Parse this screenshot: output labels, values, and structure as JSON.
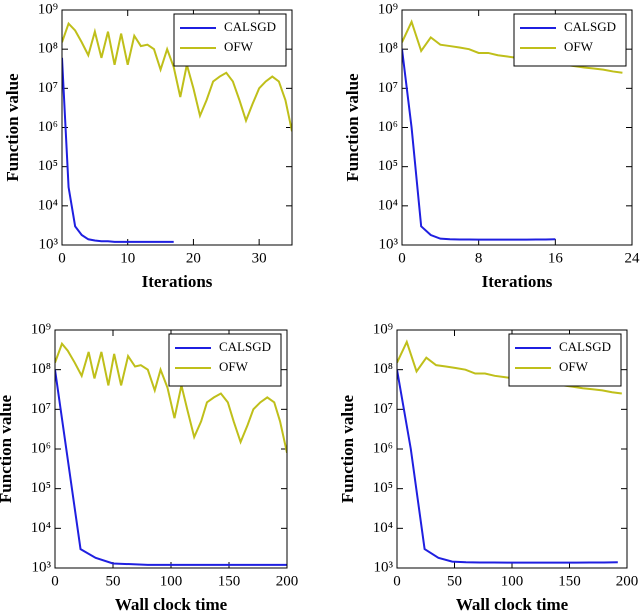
{
  "chart_data": [
    {
      "type": "line",
      "xlabel": "Iterations",
      "ylabel": "Function value",
      "log_y": true,
      "legend": "upper right",
      "xlim": [
        0,
        35
      ],
      "xticks": [
        0,
        10,
        20,
        30
      ],
      "ylim": [
        1000,
        1000000000
      ],
      "yticks": [
        {
          "value": 1000,
          "label": "10³"
        },
        {
          "value": 10000,
          "label": "10⁴"
        },
        {
          "value": 100000,
          "label": "10⁵"
        },
        {
          "value": 1000000,
          "label": "10⁶"
        },
        {
          "value": 10000000,
          "label": "10⁷"
        },
        {
          "value": 100000000,
          "label": "10⁸"
        },
        {
          "value": 1000000000,
          "label": "10⁹"
        }
      ],
      "series": [
        {
          "name": "CALSGD",
          "color": "#1f1fe0",
          "x": [
            0,
            1,
            2,
            3,
            4,
            5,
            6,
            7,
            8,
            9,
            10,
            11,
            12,
            13,
            14,
            15,
            16,
            17
          ],
          "values": [
            60000000,
            30000,
            3000,
            1800,
            1400,
            1300,
            1250,
            1250,
            1200,
            1200,
            1200,
            1200,
            1200,
            1200,
            1200,
            1200,
            1200,
            1200
          ]
        },
        {
          "name": "OFW",
          "color": "#bfbf1a",
          "x": [
            0,
            1,
            2,
            3,
            4,
            5,
            6,
            7,
            8,
            9,
            10,
            11,
            12,
            13,
            14,
            15,
            16,
            17,
            18,
            19,
            20,
            21,
            22,
            23,
            24,
            25,
            26,
            27,
            28,
            29,
            30,
            31,
            32,
            33,
            34,
            35
          ],
          "values": [
            150000000,
            450000000,
            300000000,
            150000000,
            70000000,
            280000000,
            60000000,
            280000000,
            40000000,
            250000000,
            40000000,
            220000000,
            120000000,
            130000000,
            100000000,
            30000000,
            100000000,
            35000000,
            6000000,
            40000000,
            10000000,
            2000000,
            5000000,
            15000000,
            20000000,
            25000000,
            15000000,
            5000000,
            1500000,
            4000000,
            10000000,
            15000000,
            20000000,
            15000000,
            5000000,
            800000
          ]
        }
      ]
    },
    {
      "type": "line",
      "xlabel": "Iterations",
      "ylabel": "Function value",
      "log_y": true,
      "legend": "upper right",
      "xlim": [
        0,
        24
      ],
      "xticks": [
        0,
        8,
        16,
        24
      ],
      "ylim": [
        1000,
        1000000000
      ],
      "yticks": [
        {
          "value": 1000,
          "label": "10³"
        },
        {
          "value": 10000,
          "label": "10⁴"
        },
        {
          "value": 100000,
          "label": "10⁵"
        },
        {
          "value": 1000000,
          "label": "10⁶"
        },
        {
          "value": 10000000,
          "label": "10⁷"
        },
        {
          "value": 100000000,
          "label": "10⁸"
        },
        {
          "value": 1000000000,
          "label": "10⁹"
        }
      ],
      "series": [
        {
          "name": "CALSGD",
          "color": "#1f1fe0",
          "x": [
            0,
            1,
            2,
            3,
            4,
            5,
            6,
            7,
            8,
            9,
            10,
            11,
            12,
            13,
            14,
            15,
            16
          ],
          "values": [
            100000000,
            1000000,
            3000,
            1800,
            1450,
            1400,
            1380,
            1380,
            1370,
            1370,
            1370,
            1370,
            1370,
            1370,
            1380,
            1380,
            1400
          ]
        },
        {
          "name": "OFW",
          "color": "#bfbf1a",
          "x": [
            0,
            1,
            2,
            3,
            4,
            5,
            6,
            7,
            8,
            9,
            10,
            11,
            12,
            13,
            14,
            15,
            16,
            17,
            18,
            19,
            20,
            21,
            22,
            23
          ],
          "values": [
            150000000,
            500000000,
            90000000,
            200000000,
            130000000,
            120000000,
            110000000,
            100000000,
            80000000,
            80000000,
            70000000,
            65000000,
            60000000,
            55000000,
            50000000,
            47000000,
            45000000,
            40000000,
            37000000,
            34000000,
            32000000,
            30000000,
            27000000,
            25000000
          ]
        }
      ]
    },
    {
      "type": "line",
      "xlabel": "Wall clock time",
      "ylabel": "Function value",
      "log_y": true,
      "legend": "upper right",
      "xlim": [
        0,
        200
      ],
      "xticks": [
        0,
        50,
        100,
        150,
        200
      ],
      "ylim": [
        1000,
        1000000000
      ],
      "yticks": [
        {
          "value": 1000,
          "label": "10³"
        },
        {
          "value": 10000,
          "label": "10⁴"
        },
        {
          "value": 100000,
          "label": "10⁵"
        },
        {
          "value": 1000000,
          "label": "10⁶"
        },
        {
          "value": 10000000,
          "label": "10⁷"
        },
        {
          "value": 100000000,
          "label": "10⁸"
        },
        {
          "value": 1000000000,
          "label": "10⁹"
        }
      ],
      "series": [
        {
          "name": "CALSGD",
          "color": "#1f1fe0",
          "x": [
            0,
            22,
            35,
            50,
            65,
            80,
            100,
            120,
            140,
            160,
            180,
            200
          ],
          "values": [
            100000000,
            3000,
            1800,
            1300,
            1250,
            1200,
            1200,
            1200,
            1200,
            1200,
            1200,
            1200
          ]
        },
        {
          "name": "OFW",
          "color": "#bfbf1a",
          "x": [
            0,
            6,
            11,
            17,
            23,
            29,
            34,
            40,
            46,
            51,
            57,
            63,
            69,
            74,
            80,
            86,
            91,
            97,
            103,
            109,
            114,
            120,
            126,
            131,
            137,
            143,
            149,
            154,
            160,
            166,
            171,
            177,
            183,
            189,
            194,
            200
          ],
          "values": [
            150000000,
            450000000,
            300000000,
            150000000,
            70000000,
            280000000,
            60000000,
            280000000,
            40000000,
            250000000,
            40000000,
            220000000,
            120000000,
            130000000,
            100000000,
            30000000,
            100000000,
            35000000,
            6000000,
            40000000,
            10000000,
            2000000,
            5000000,
            15000000,
            20000000,
            25000000,
            15000000,
            5000000,
            1500000,
            4000000,
            10000000,
            15000000,
            20000000,
            15000000,
            5000000,
            800000
          ]
        }
      ]
    },
    {
      "type": "line",
      "xlabel": "Wall clock time",
      "ylabel": "Function value",
      "log_y": true,
      "legend": "upper right",
      "xlim": [
        0,
        200
      ],
      "xticks": [
        0,
        50,
        100,
        150,
        200
      ],
      "ylim": [
        1000,
        1000000000
      ],
      "yticks": [
        {
          "value": 1000,
          "label": "10³"
        },
        {
          "value": 10000,
          "label": "10⁴"
        },
        {
          "value": 100000,
          "label": "10⁵"
        },
        {
          "value": 1000000,
          "label": "10⁶"
        },
        {
          "value": 10000000,
          "label": "10⁷"
        },
        {
          "value": 100000000,
          "label": "10⁸"
        },
        {
          "value": 1000000000,
          "label": "10⁹"
        }
      ],
      "series": [
        {
          "name": "CALSGD",
          "color": "#1f1fe0",
          "x": [
            0,
            12,
            24,
            36,
            48,
            60,
            72,
            84,
            96,
            108,
            120,
            132,
            144,
            156,
            168,
            180,
            192
          ],
          "values": [
            100000000,
            1000000,
            3000,
            1800,
            1450,
            1400,
            1380,
            1380,
            1370,
            1370,
            1370,
            1370,
            1370,
            1370,
            1380,
            1380,
            1400
          ]
        },
        {
          "name": "OFW",
          "color": "#bfbf1a",
          "x": [
            0,
            8.5,
            17,
            25.5,
            34,
            42.5,
            51,
            59.5,
            68,
            76.5,
            85,
            93.5,
            102,
            110.5,
            119,
            127.5,
            136,
            144.5,
            153,
            161.5,
            170,
            178.5,
            187,
            195.5
          ],
          "values": [
            150000000,
            500000000,
            90000000,
            200000000,
            130000000,
            120000000,
            110000000,
            100000000,
            80000000,
            80000000,
            70000000,
            65000000,
            60000000,
            55000000,
            50000000,
            47000000,
            45000000,
            40000000,
            37000000,
            34000000,
            32000000,
            30000000,
            27000000,
            25000000
          ]
        }
      ]
    }
  ]
}
